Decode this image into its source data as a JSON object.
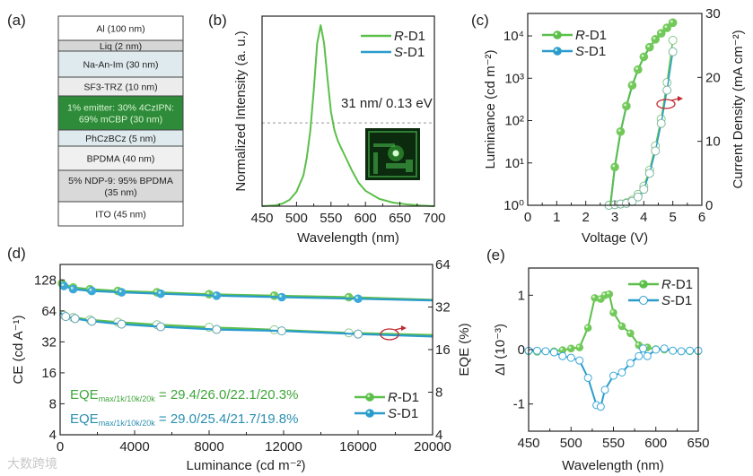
{
  "colors": {
    "r_d1": "#5cbf4a",
    "r_d1_marker": "#72c95a",
    "s_d1": "#2a9ccc",
    "s_d1_marker": "#3aa8d8",
    "emitter_layer": "#2e8b3a",
    "annotation": "#c0282d"
  },
  "panel_labels": {
    "a": "(a)",
    "b": "(b)",
    "c": "(c)",
    "d": "(d)",
    "e": "(e)"
  },
  "device_stack": {
    "layers": [
      {
        "lines": [
          "Al (100 nm)"
        ],
        "fill": "#ffffff",
        "text_color": "#222222"
      },
      {
        "lines": [
          "Liq (2 nm)"
        ],
        "fill": "#d6d6d6",
        "text_color": "#222222"
      },
      {
        "lines": [
          "Na-An-Im (30 nm)"
        ],
        "fill": "#dfeaee",
        "text_color": "#222222"
      },
      {
        "lines": [
          "SF3-TRZ (10 nm)"
        ],
        "fill": "#ececec",
        "text_color": "#222222"
      },
      {
        "lines": [
          "1% emitter: 30% 4CzIPN:",
          "69% mCBP (30 nm)"
        ],
        "fill": "#2e8b3a",
        "text_color": "#d8f5d0"
      },
      {
        "lines": [
          "PhCzBCz (5 nm)"
        ],
        "fill": "#dfeaee",
        "text_color": "#222222"
      },
      {
        "lines": [
          "BPDMA (40 nm)"
        ],
        "fill": "#f0f0f0",
        "text_color": "#222222"
      },
      {
        "lines": [
          "5% NDP-9: 95% BPDMA",
          "(35 nm)"
        ],
        "fill": "#d9d9d9",
        "text_color": "#222222"
      },
      {
        "lines": [
          "ITO (45 nm)"
        ],
        "fill": "#ffffff",
        "text_color": "#222222"
      }
    ]
  },
  "chart_data": [
    {
      "id": "b",
      "type": "line",
      "xlabel": "Wavelength (nm)",
      "ylabel": "Normalized Intensity (a. u.)",
      "xlim": [
        450,
        700
      ],
      "ylim": [
        0,
        1.05
      ],
      "xticks": [
        "450",
        "500",
        "550",
        "600",
        "650",
        "700"
      ],
      "annotation": "31 nm/ 0.13 eV",
      "fwhm_level": 0.46,
      "legend": [
        "R-D1",
        "S-D1"
      ],
      "legend_placement": "top-right",
      "x": [
        450,
        470,
        480,
        490,
        500,
        510,
        515,
        520,
        525,
        530,
        535,
        540,
        545,
        550,
        555,
        560,
        565,
        570,
        580,
        590,
        600,
        620,
        640,
        660,
        680,
        700
      ],
      "series": [
        {
          "name": "R-D1",
          "values": [
            0,
            0.005,
            0.015,
            0.035,
            0.08,
            0.17,
            0.27,
            0.42,
            0.64,
            0.9,
            1.0,
            0.9,
            0.7,
            0.52,
            0.42,
            0.36,
            0.32,
            0.28,
            0.2,
            0.13,
            0.085,
            0.04,
            0.02,
            0.01,
            0.004,
            0
          ]
        },
        {
          "name": "S-D1",
          "values": [
            0,
            0.005,
            0.015,
            0.035,
            0.08,
            0.17,
            0.27,
            0.42,
            0.64,
            0.9,
            1.0,
            0.9,
            0.7,
            0.52,
            0.42,
            0.36,
            0.32,
            0.28,
            0.2,
            0.13,
            0.085,
            0.04,
            0.02,
            0.01,
            0.004,
            0
          ]
        }
      ]
    },
    {
      "id": "c",
      "type": "line",
      "xlabel": "Voltage (V)",
      "ylabel": "Luminance (cd m⁻²)",
      "y2label": "Current Density (mA cm⁻²)",
      "xlim": [
        0,
        6
      ],
      "ylim_log10": [
        0,
        4.53
      ],
      "y2lim": [
        0,
        30
      ],
      "xticks": [
        "0",
        "1",
        "2",
        "3",
        "4",
        "5",
        "6"
      ],
      "yticks": [
        "10⁰",
        "10¹",
        "10²",
        "10³",
        "10⁴"
      ],
      "y2ticks": [
        "0",
        "10",
        "20",
        "30"
      ],
      "legend": [
        "R-D1",
        "S-D1"
      ],
      "legend_placement": "top-left",
      "luminance": {
        "x": [
          2.85,
          3.0,
          3.2,
          3.4,
          3.6,
          3.8,
          4.0,
          4.2,
          4.4,
          4.6,
          4.8,
          5.0
        ],
        "series": [
          {
            "name": "R-D1",
            "values": [
              1,
              8,
              55,
              220,
              680,
              1600,
              3200,
              5400,
              8300,
              11500,
              15500,
              20500
            ]
          },
          {
            "name": "S-D1",
            "values": [
              1,
              8,
              54,
              215,
              670,
              1580,
              3150,
              5300,
              8200,
              11300,
              15300,
              20200
            ]
          }
        ]
      },
      "current_density": {
        "x": [
          2.8,
          3.0,
          3.2,
          3.4,
          3.6,
          3.8,
          4.0,
          4.2,
          4.4,
          4.6,
          4.8,
          5.0
        ],
        "series": [
          {
            "name": "R-D1",
            "values": [
              0,
              0.1,
              0.2,
              0.4,
              0.8,
              1.7,
              3.0,
              5.5,
              9.3,
              13.5,
              19.2,
              25.8
            ]
          },
          {
            "name": "S-D1",
            "values": [
              0,
              0.1,
              0.2,
              0.3,
              0.6,
              1.3,
              2.5,
              5.0,
              8.5,
              12.8,
              18.0,
              24.0
            ]
          }
        ]
      }
    },
    {
      "id": "d",
      "type": "line",
      "xlabel": "Luminance (cd m⁻²)",
      "ylabel": "CE (cd A⁻¹)",
      "y2label": "EQE (%)",
      "xlim": [
        0,
        20000
      ],
      "ylim_log2": [
        4,
        181
      ],
      "y2lim_log2": [
        4,
        64
      ],
      "xticks": [
        "0",
        "4000",
        "8000",
        "12000",
        "16000",
        "20000"
      ],
      "yticks": [
        "4",
        "8",
        "16",
        "32",
        "64",
        "128"
      ],
      "y2ticks": [
        "4",
        "8",
        "16",
        "32",
        "64"
      ],
      "legend": [
        "R-D1",
        "S-D1"
      ],
      "legend_placement": "bottom-right",
      "eqe_summary": [
        {
          "name": "R-D1",
          "prefix": "EQE",
          "sub": "max/1k/10k/20k",
          "value": " = 29.4/26.0/22.1/20.3%"
        },
        {
          "name": "S-D1",
          "prefix": "EQE",
          "sub": "max/1k/10k/20k",
          "value": " = 29.0/25.4/21.7/19.8%"
        }
      ],
      "ce": {
        "series": [
          {
            "name": "R-D1",
            "x": [
              0,
              100,
              700,
              1600,
              3100,
              5200,
              8000,
              11500,
              15500,
              20000
            ],
            "values": [
              125,
              118,
              108,
              104,
              100,
              97,
              93,
              90,
              87,
              82
            ]
          },
          {
            "name": "S-D1",
            "x": [
              0,
              200,
              700,
              1700,
              3300,
              5400,
              8400,
              11900,
              16000,
              20000
            ],
            "values": [
              122,
              112,
              104,
              100,
              97,
              94,
              90,
              87,
              84,
              81
            ]
          }
        ]
      },
      "eqe": {
        "series": [
          {
            "name": "R-D1",
            "x": [
              0,
              200,
              700,
              1600,
              3100,
              5200,
              8000,
              11500,
              15500,
              20000
            ],
            "values": [
              29.4,
              28.0,
              27.0,
              26.0,
              25.0,
              24.0,
              23.0,
              22.1,
              21.0,
              20.3
            ]
          },
          {
            "name": "S-D1",
            "x": [
              0,
              300,
              800,
              1700,
              3300,
              5400,
              8400,
              11900,
              16000,
              20000
            ],
            "values": [
              29.0,
              27.4,
              26.5,
              25.4,
              24.2,
              23.2,
              22.2,
              21.7,
              20.6,
              19.8
            ]
          }
        ]
      }
    },
    {
      "id": "e",
      "type": "line",
      "xlabel": "Wavelength (nm)",
      "ylabel": "ΔI (10⁻³)",
      "xlim": [
        450,
        650
      ],
      "ylim": [
        -1.5,
        1.5
      ],
      "xticks": [
        "450",
        "500",
        "550",
        "600",
        "650"
      ],
      "yticks": [
        "-1",
        "0",
        "1"
      ],
      "legend": [
        "R-D1",
        "S-D1"
      ],
      "legend_placement": "top-right",
      "series": [
        {
          "name": "R-D1",
          "x": [
            450,
            460,
            470,
            480,
            490,
            500,
            510,
            520,
            528,
            535,
            540,
            545,
            550,
            560,
            570,
            580,
            590,
            600,
            610,
            620,
            630,
            640,
            650
          ],
          "values": [
            -0.03,
            -0.04,
            -0.03,
            -0.03,
            -0.01,
            0.02,
            0.04,
            0.4,
            0.95,
            0.93,
            1.0,
            1.02,
            0.68,
            0.43,
            0.3,
            0.08,
            0.04,
            0.01,
            0,
            -0.02,
            -0.03,
            -0.03,
            -0.03
          ]
        },
        {
          "name": "S-D1",
          "x": [
            450,
            460,
            470,
            480,
            490,
            500,
            510,
            520,
            530,
            535,
            540,
            550,
            560,
            570,
            580,
            585,
            590,
            600,
            610,
            620,
            630,
            640,
            650
          ],
          "values": [
            -0.02,
            -0.02,
            -0.03,
            -0.05,
            -0.12,
            -0.15,
            -0.2,
            -0.52,
            -1.02,
            -1.05,
            -0.74,
            -0.48,
            -0.42,
            -0.25,
            -0.12,
            0.02,
            -0.12,
            0.0,
            0.02,
            -0.02,
            -0.03,
            -0.02,
            -0.02
          ]
        }
      ]
    }
  ],
  "watermark": "大数跨境"
}
